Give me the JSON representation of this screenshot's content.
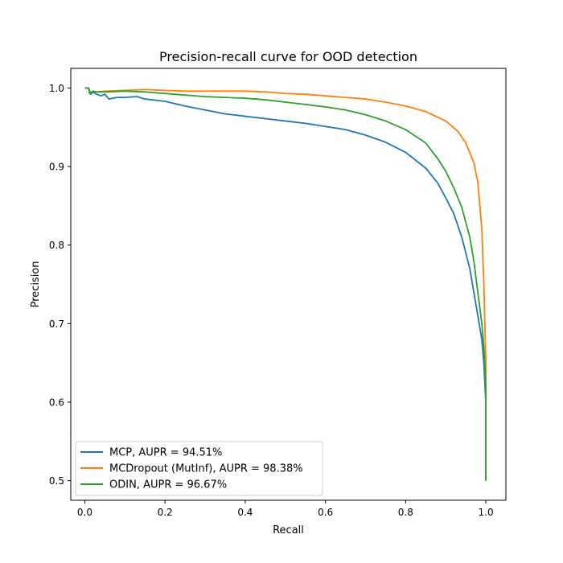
{
  "chart_data": {
    "type": "line",
    "title": "Precision-recall curve for OOD detection",
    "xlabel": "Recall",
    "ylabel": "Precision",
    "xlim": [
      -0.035,
      1.05
    ],
    "ylim": [
      0.475,
      1.025
    ],
    "xticks": [
      0.0,
      0.2,
      0.4,
      0.6,
      0.8,
      1.0
    ],
    "xtick_labels": [
      "0.0",
      "0.2",
      "0.4",
      "0.6",
      "0.8",
      "1.0"
    ],
    "yticks": [
      0.5,
      0.6,
      0.7,
      0.8,
      0.9,
      1.0
    ],
    "ytick_labels": [
      "0.5",
      "0.6",
      "0.7",
      "0.8",
      "0.9",
      "1.0"
    ],
    "grid": false,
    "legend_position": "lower-left",
    "series": [
      {
        "name": "MCP, AUPR = 94.51%",
        "color": "#1f77b4",
        "x": [
          0.0,
          0.01,
          0.015,
          0.02,
          0.03,
          0.04,
          0.05,
          0.06,
          0.08,
          0.1,
          0.13,
          0.15,
          0.2,
          0.25,
          0.3,
          0.35,
          0.4,
          0.45,
          0.5,
          0.55,
          0.6,
          0.65,
          0.7,
          0.75,
          0.8,
          0.85,
          0.88,
          0.9,
          0.92,
          0.94,
          0.95,
          0.96,
          0.97,
          0.98,
          0.99,
          0.995,
          1.0,
          1.0
        ],
        "y": [
          1.0,
          1.0,
          0.992,
          0.995,
          0.992,
          0.99,
          0.992,
          0.986,
          0.988,
          0.988,
          0.989,
          0.986,
          0.983,
          0.977,
          0.972,
          0.967,
          0.964,
          0.961,
          0.958,
          0.955,
          0.951,
          0.947,
          0.94,
          0.931,
          0.918,
          0.898,
          0.879,
          0.86,
          0.84,
          0.81,
          0.79,
          0.77,
          0.74,
          0.71,
          0.68,
          0.65,
          0.6,
          0.5
        ]
      },
      {
        "name": "MCDropout (MutInf), AUPR = 98.38%",
        "color": "#ff7f0e",
        "x": [
          0.0,
          0.01,
          0.012,
          0.02,
          0.03,
          0.05,
          0.1,
          0.15,
          0.2,
          0.25,
          0.3,
          0.35,
          0.4,
          0.45,
          0.5,
          0.55,
          0.6,
          0.65,
          0.7,
          0.75,
          0.8,
          0.85,
          0.9,
          0.93,
          0.95,
          0.97,
          0.98,
          0.99,
          0.995,
          1.0,
          1.0,
          1.0
        ],
        "y": [
          1.0,
          1.0,
          0.993,
          0.996,
          0.995,
          0.996,
          0.997,
          0.998,
          0.997,
          0.996,
          0.996,
          0.996,
          0.996,
          0.995,
          0.993,
          0.992,
          0.99,
          0.988,
          0.986,
          0.982,
          0.977,
          0.97,
          0.958,
          0.945,
          0.93,
          0.905,
          0.88,
          0.82,
          0.75,
          0.65,
          0.55,
          0.5
        ]
      },
      {
        "name": "ODIN, AUPR = 96.67%",
        "color": "#2ca02c",
        "x": [
          0.0,
          0.01,
          0.012,
          0.02,
          0.03,
          0.05,
          0.1,
          0.15,
          0.2,
          0.25,
          0.3,
          0.35,
          0.4,
          0.45,
          0.5,
          0.55,
          0.6,
          0.65,
          0.7,
          0.75,
          0.8,
          0.85,
          0.88,
          0.9,
          0.92,
          0.94,
          0.96,
          0.97,
          0.98,
          0.99,
          0.995,
          1.0,
          1.0
        ],
        "y": [
          1.0,
          1.0,
          0.993,
          0.996,
          0.995,
          0.995,
          0.996,
          0.995,
          0.993,
          0.991,
          0.989,
          0.988,
          0.987,
          0.985,
          0.982,
          0.979,
          0.976,
          0.972,
          0.966,
          0.958,
          0.947,
          0.93,
          0.91,
          0.894,
          0.873,
          0.848,
          0.81,
          0.78,
          0.74,
          0.7,
          0.67,
          0.62,
          0.5
        ]
      }
    ]
  }
}
